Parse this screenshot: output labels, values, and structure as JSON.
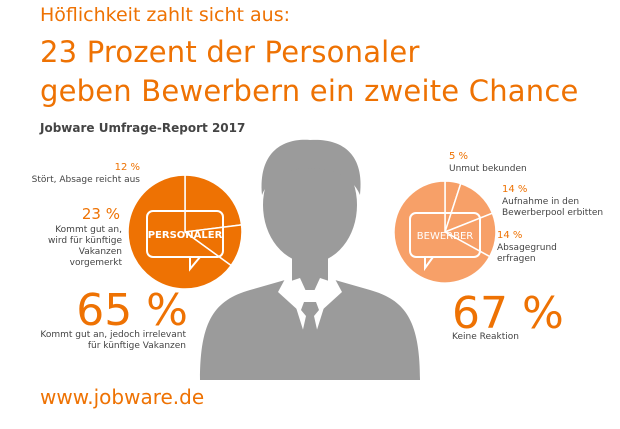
{
  "kicker": "Höflichkeit zahlt sicht aus:",
  "headline": {
    "line1": "23 Prozent der Personaler",
    "line2": "geben Bewerbern ein zweite Chance"
  },
  "subtitle": "Jobware Umfrage-Report 2017",
  "footer": "www.jobware.de",
  "colors": {
    "accent": "#ee7203",
    "accent_light": "#f7a068",
    "accent_dark_segment": "#f08a2a",
    "silhouette": "#9b9b9b"
  },
  "icons": [
    "person-silhouette-icon",
    "speech-bubble-icon"
  ],
  "chart_data": [
    {
      "type": "pie",
      "label": "PERSONALER",
      "slices": [
        {
          "value_label": "65 %",
          "value": 65,
          "label": "Kommt gut an, jedoch irrelevant für künftige Vakanzen"
        },
        {
          "value_label": "23 %",
          "value": 23,
          "label": "Kommt gut an, wird für künftige Vakanzen vorgemerkt"
        },
        {
          "value_label": "12 %",
          "value": 12,
          "label": "Stört, Absage reicht aus"
        }
      ]
    },
    {
      "type": "pie",
      "label": "BEWERBER",
      "slices": [
        {
          "value_label": "67 %",
          "value": 67,
          "label": "Keine Reaktion"
        },
        {
          "value_label": "5 %",
          "value": 5,
          "label": "Unmut bekunden"
        },
        {
          "value_label": "14 %",
          "value": 14,
          "label": "Aufnahme in den Bewerberpool erbitten"
        },
        {
          "value_label": "14 %",
          "value": 14,
          "label": "Absagegrund erfragen"
        }
      ]
    }
  ]
}
